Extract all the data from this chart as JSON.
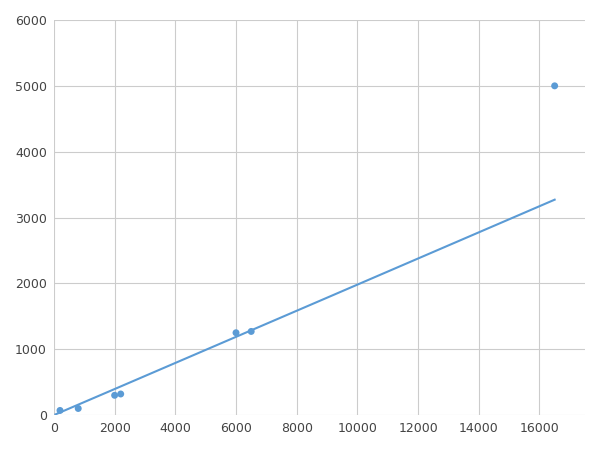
{
  "x_points": [
    200,
    800,
    2000,
    2200,
    6000,
    6500,
    16500
  ],
  "y_points": [
    70,
    100,
    300,
    320,
    1250,
    1270,
    5000
  ],
  "xlim": [
    0,
    17500
  ],
  "ylim": [
    0,
    6000
  ],
  "xticks": [
    0,
    2000,
    4000,
    6000,
    8000,
    10000,
    12000,
    14000,
    16000
  ],
  "yticks": [
    0,
    1000,
    2000,
    3000,
    4000,
    5000,
    6000
  ],
  "line_color": "#5b9bd5",
  "marker_color": "#5b9bd5",
  "bg_color": "#ffffff",
  "grid_color": "#cccccc",
  "figsize": [
    6.0,
    4.5
  ],
  "dpi": 100
}
